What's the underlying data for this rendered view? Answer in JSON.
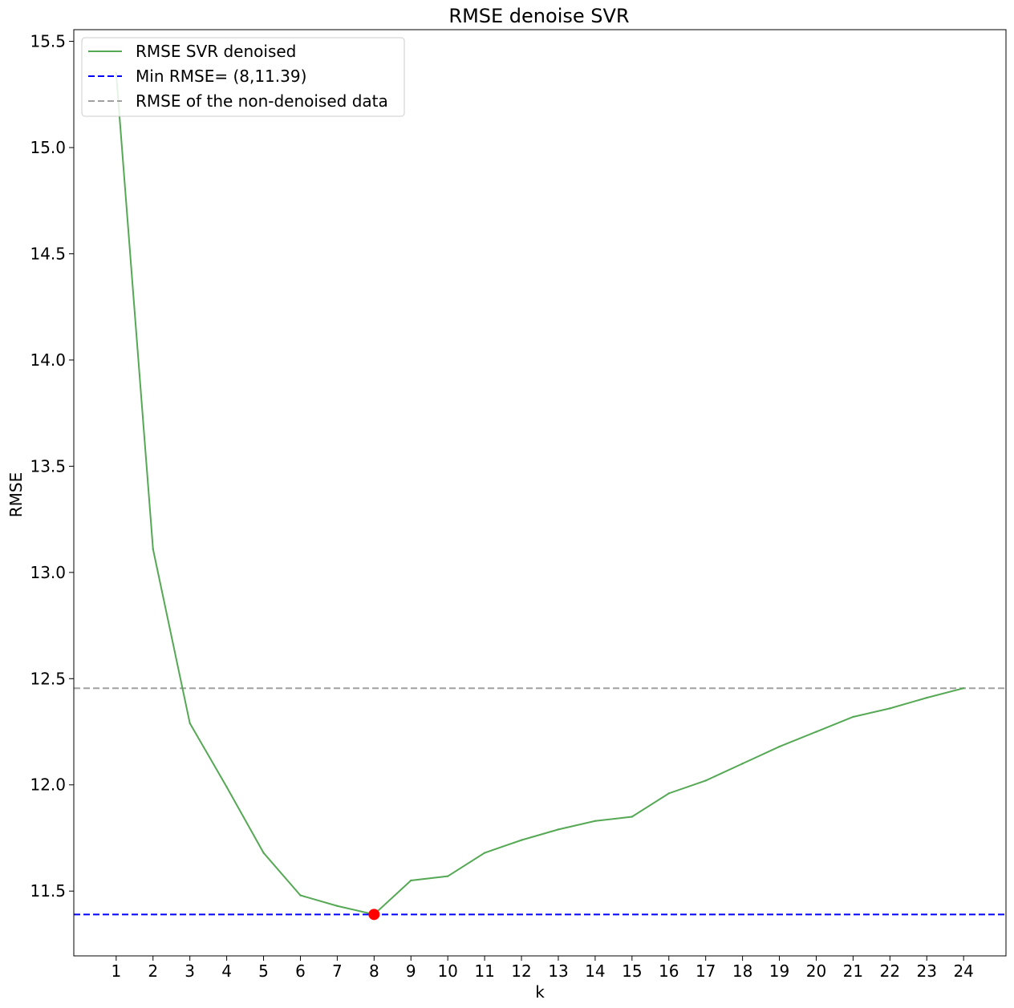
{
  "chart_data": {
    "type": "line",
    "title": "RMSE denoise SVR",
    "xlabel": "k",
    "ylabel": "RMSE",
    "x": [
      1,
      2,
      3,
      4,
      5,
      6,
      7,
      8,
      9,
      10,
      11,
      12,
      13,
      14,
      15,
      16,
      17,
      18,
      19,
      20,
      21,
      22,
      23,
      24
    ],
    "xlim": [
      -0.15,
      25.15
    ],
    "ylim": [
      11.195,
      15.555
    ],
    "xticks": [
      "1",
      "2",
      "3",
      "4",
      "5",
      "6",
      "7",
      "8",
      "9",
      "10",
      "11",
      "12",
      "13",
      "14",
      "15",
      "16",
      "17",
      "18",
      "19",
      "20",
      "21",
      "22",
      "23",
      "24"
    ],
    "yticks": [
      "11.5",
      "12.0",
      "12.5",
      "13.0",
      "13.5",
      "14.0",
      "14.5",
      "15.0",
      "15.5"
    ],
    "series": [
      {
        "name": "RMSE SVR denoised",
        "color": "#55a854",
        "values": [
          15.35,
          13.11,
          12.29,
          11.99,
          11.68,
          11.48,
          11.43,
          11.39,
          11.55,
          11.57,
          11.68,
          11.74,
          11.79,
          11.83,
          11.85,
          11.96,
          12.02,
          12.1,
          12.18,
          12.25,
          12.32,
          12.36,
          12.41,
          12.455
        ]
      }
    ],
    "reference_lines": [
      {
        "name": "Min RMSE= (8,11.39)",
        "y": 11.39,
        "color": "#0000ff",
        "style": "dashed"
      },
      {
        "name": "RMSE of the non-denoised data",
        "y": 12.455,
        "color": "#a0a0a0",
        "style": "dashed"
      }
    ],
    "min_point": {
      "x": 8,
      "y": 11.39,
      "color": "#ff0000"
    },
    "legend_position": "top-left",
    "grid": false
  }
}
